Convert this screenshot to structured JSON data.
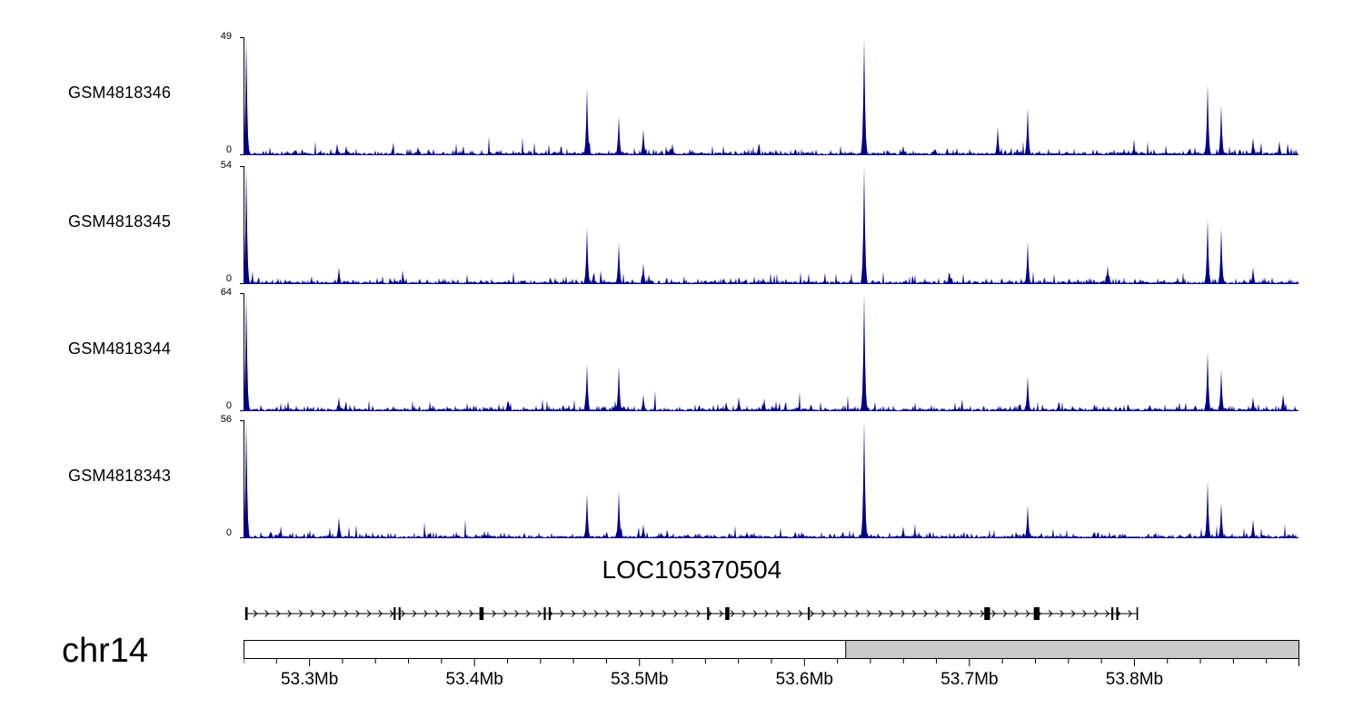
{
  "chart_data": {
    "type": "area",
    "title": "",
    "description": "Read-coverage signal tracks (4 GEO samples) over a genomic window of chr14 with a gene model and genome axis",
    "chromosome": "chr14",
    "xlim": [
      53.26,
      53.9
    ],
    "x_ticks": [
      53.3,
      53.4,
      53.5,
      53.6,
      53.7,
      53.8
    ],
    "x_tick_labels": [
      "53.3Mb",
      "53.4Mb",
      "53.5Mb",
      "53.6Mb",
      "53.7Mb",
      "53.8Mb"
    ],
    "minor_tick_mb": 0.02,
    "signal_color": "#00008B",
    "axis_shaded_region_mb": [
      53.625,
      53.9
    ],
    "axis_shade_color": "#c9c9c9",
    "tracks": [
      {
        "name": "GSM4818346",
        "ymin": 0,
        "ymax": 49,
        "noise_seed": 11,
        "peaks": [
          {
            "pos": 53.2615,
            "h": 1.0
          },
          {
            "pos": 53.317,
            "h": 0.1
          },
          {
            "pos": 53.322,
            "h": 0.08
          },
          {
            "pos": 53.366,
            "h": 0.07
          },
          {
            "pos": 53.468,
            "h": 0.57
          },
          {
            "pos": 53.4875,
            "h": 0.33
          },
          {
            "pos": 53.5025,
            "h": 0.22
          },
          {
            "pos": 53.52,
            "h": 0.1
          },
          {
            "pos": 53.636,
            "h": 1.0
          },
          {
            "pos": 53.66,
            "h": 0.08
          },
          {
            "pos": 53.717,
            "h": 0.24
          },
          {
            "pos": 53.7355,
            "h": 0.4
          },
          {
            "pos": 53.8,
            "h": 0.1
          },
          {
            "pos": 53.8445,
            "h": 0.6
          },
          {
            "pos": 53.8525,
            "h": 0.42
          },
          {
            "pos": 53.872,
            "h": 0.15
          },
          {
            "pos": 53.888,
            "h": 0.12
          }
        ]
      },
      {
        "name": "GSM4818345",
        "ymin": 0,
        "ymax": 54,
        "noise_seed": 22,
        "peaks": [
          {
            "pos": 53.2615,
            "h": 1.0
          },
          {
            "pos": 53.318,
            "h": 0.14
          },
          {
            "pos": 53.468,
            "h": 0.48
          },
          {
            "pos": 53.4875,
            "h": 0.35
          },
          {
            "pos": 53.5025,
            "h": 0.18
          },
          {
            "pos": 53.636,
            "h": 1.0
          },
          {
            "pos": 53.688,
            "h": 0.1
          },
          {
            "pos": 53.7355,
            "h": 0.36
          },
          {
            "pos": 53.784,
            "h": 0.16
          },
          {
            "pos": 53.8445,
            "h": 0.55
          },
          {
            "pos": 53.8525,
            "h": 0.48
          },
          {
            "pos": 53.872,
            "h": 0.14
          }
        ]
      },
      {
        "name": "GSM4818344",
        "ymin": 0,
        "ymax": 64,
        "noise_seed": 33,
        "peaks": [
          {
            "pos": 53.2615,
            "h": 1.0
          },
          {
            "pos": 53.318,
            "h": 0.12
          },
          {
            "pos": 53.468,
            "h": 0.4
          },
          {
            "pos": 53.4875,
            "h": 0.38
          },
          {
            "pos": 53.5025,
            "h": 0.14
          },
          {
            "pos": 53.56,
            "h": 0.12
          },
          {
            "pos": 53.636,
            "h": 1.0
          },
          {
            "pos": 53.7355,
            "h": 0.3
          },
          {
            "pos": 53.8445,
            "h": 0.5
          },
          {
            "pos": 53.8525,
            "h": 0.35
          },
          {
            "pos": 53.872,
            "h": 0.12
          },
          {
            "pos": 53.89,
            "h": 0.14
          }
        ]
      },
      {
        "name": "GSM4818343",
        "ymin": 0,
        "ymax": 56,
        "noise_seed": 44,
        "peaks": [
          {
            "pos": 53.2615,
            "h": 1.0
          },
          {
            "pos": 53.318,
            "h": 0.18
          },
          {
            "pos": 53.468,
            "h": 0.38
          },
          {
            "pos": 53.4875,
            "h": 0.4
          },
          {
            "pos": 53.5025,
            "h": 0.12
          },
          {
            "pos": 53.636,
            "h": 1.0
          },
          {
            "pos": 53.66,
            "h": 0.1
          },
          {
            "pos": 53.7355,
            "h": 0.28
          },
          {
            "pos": 53.8445,
            "h": 0.48
          },
          {
            "pos": 53.8525,
            "h": 0.3
          },
          {
            "pos": 53.872,
            "h": 0.16
          }
        ]
      }
    ],
    "gene": {
      "name": "LOC105370504",
      "start_mb": 53.2615,
      "end_mb": 53.802,
      "strand": "+",
      "exons_mb": [
        [
          53.261,
          53.2625
        ],
        [
          53.351,
          53.3522
        ],
        [
          53.354,
          53.3552
        ],
        [
          53.403,
          53.4055
        ],
        [
          53.442,
          53.4432
        ],
        [
          53.445,
          53.4462
        ],
        [
          53.541,
          53.5422
        ],
        [
          53.552,
          53.5545
        ],
        [
          53.602,
          53.6032
        ],
        [
          53.709,
          53.7125
        ],
        [
          53.739,
          53.7425
        ],
        [
          53.786,
          53.7872
        ],
        [
          53.789,
          53.7902
        ]
      ]
    }
  }
}
